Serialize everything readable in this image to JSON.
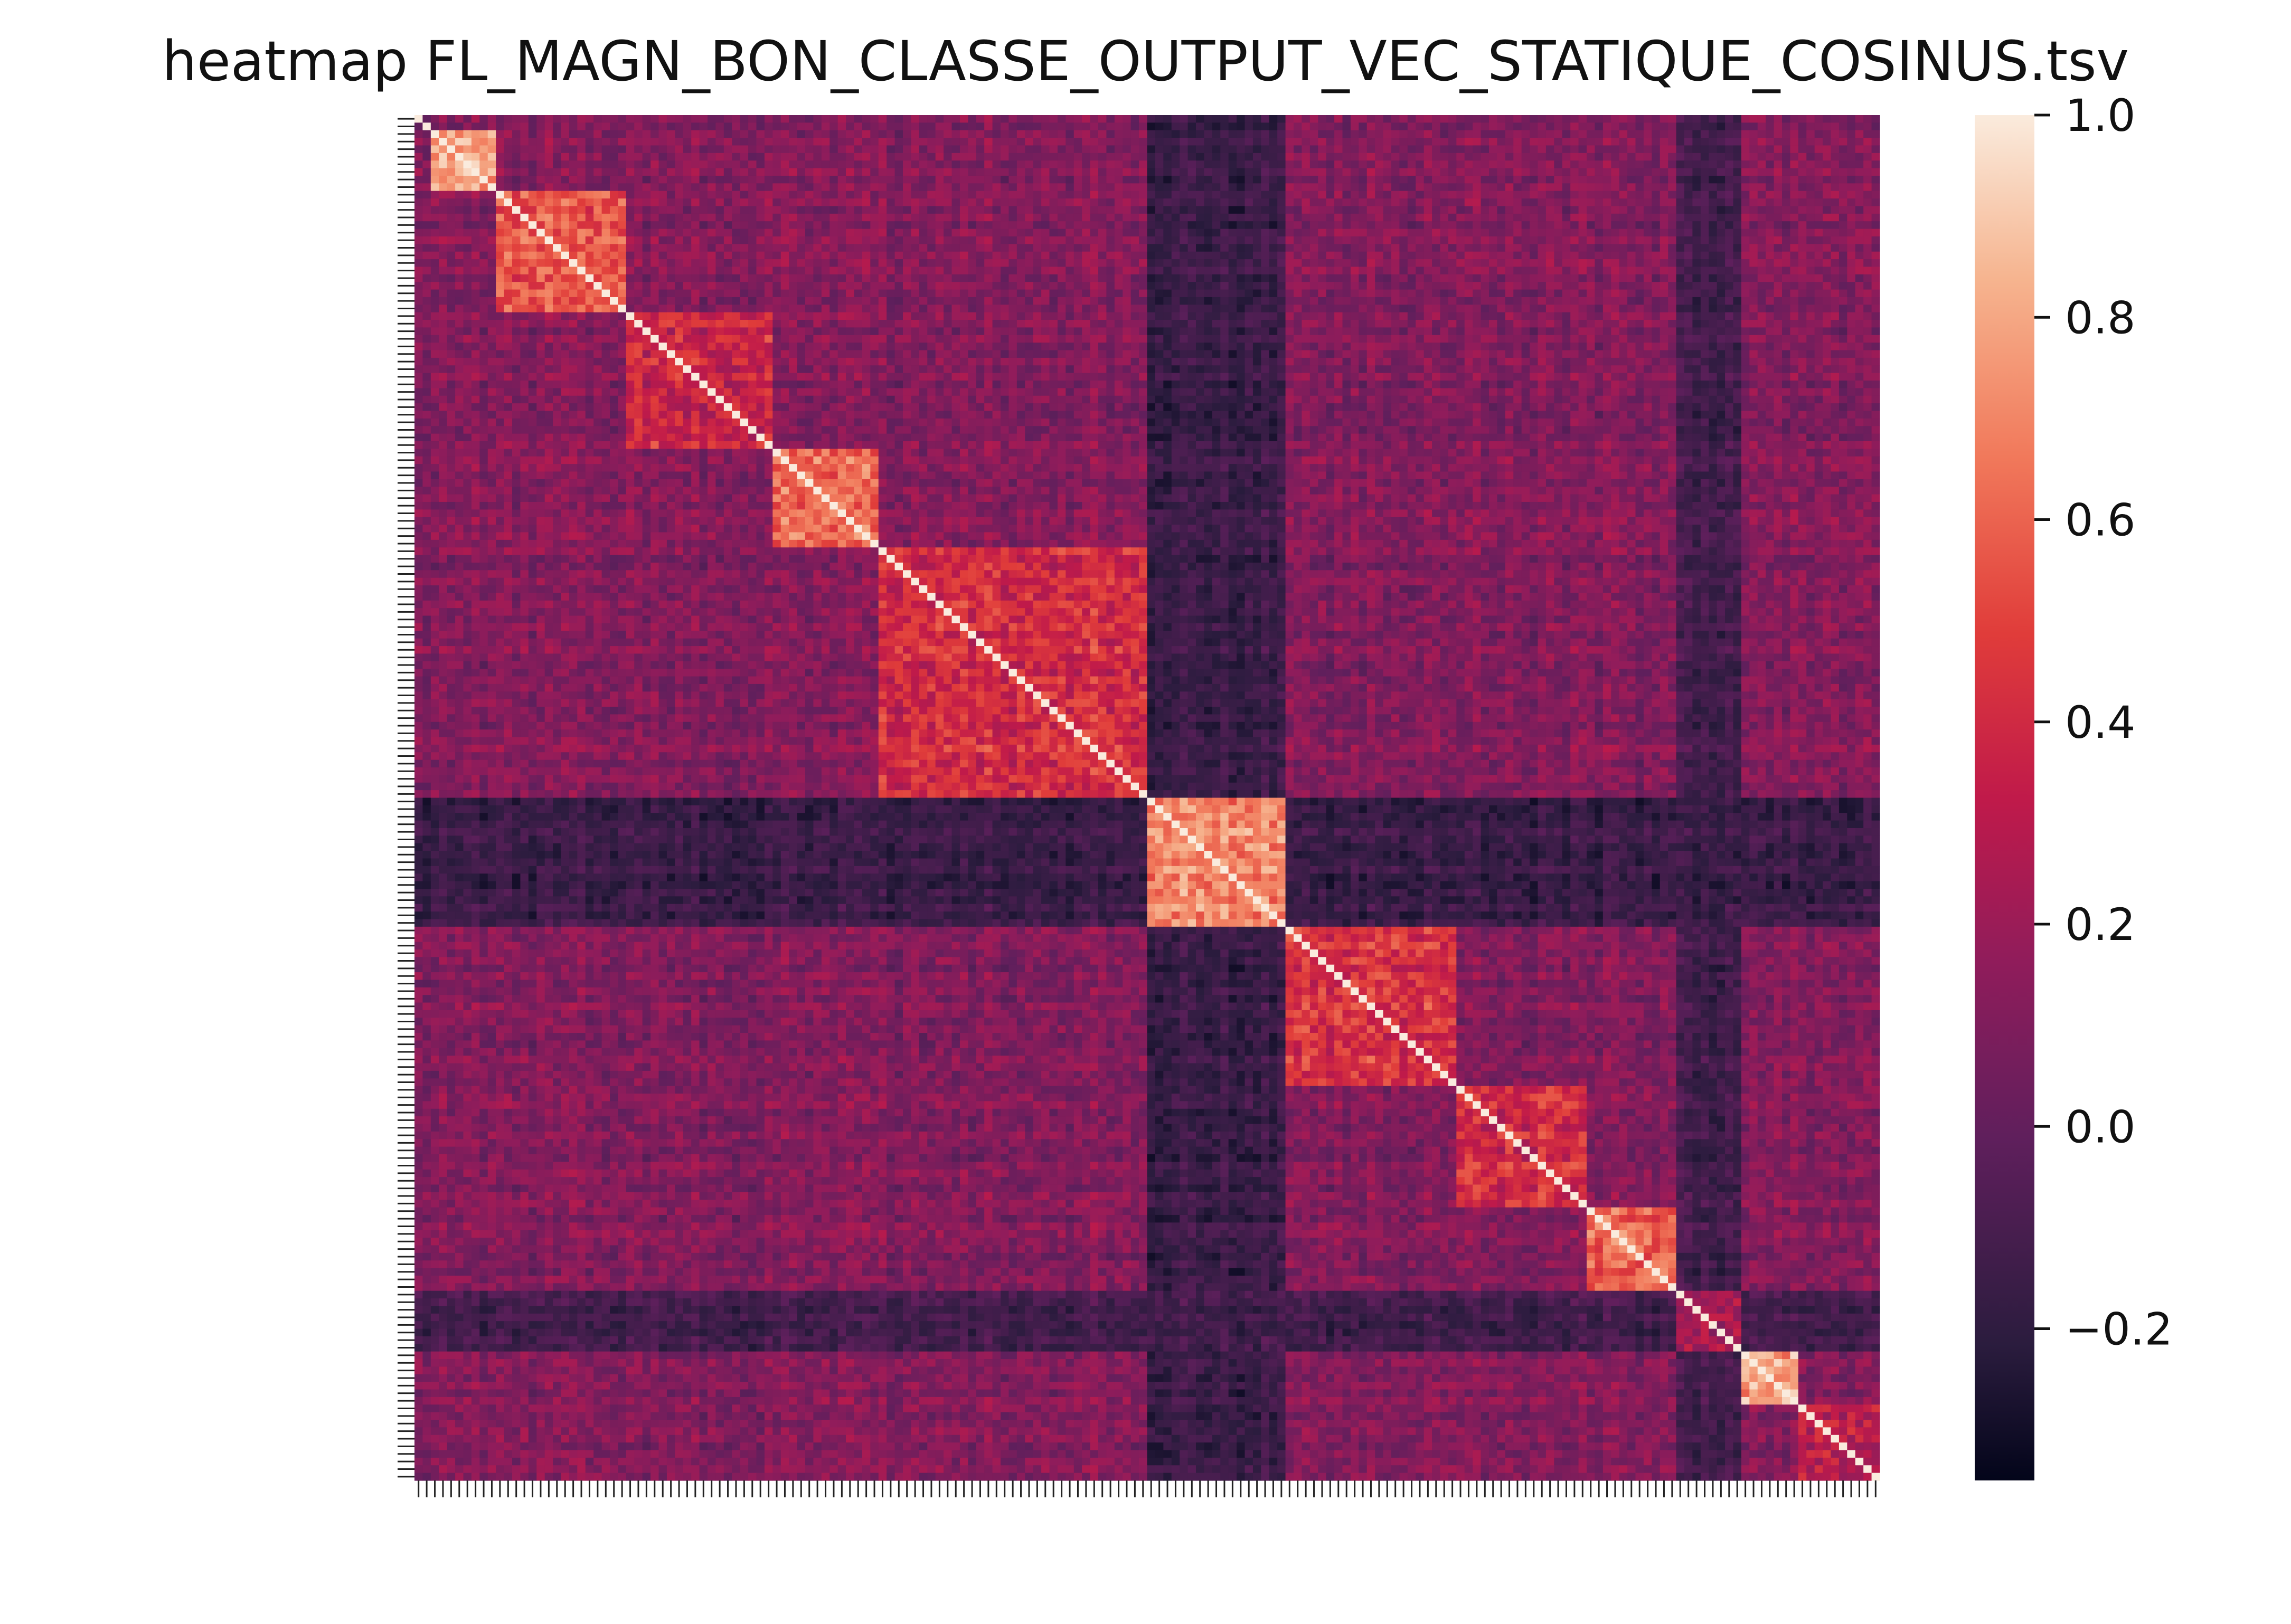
{
  "chart_data": {
    "type": "heatmap",
    "title": "heatmap FL_MAGN_BON_CLASSE_OUTPUT_VEC_STATIQUE_COSINUS.tsv",
    "xlabel": "",
    "ylabel": "",
    "size": 180,
    "colormap": "rocket",
    "colorbar": {
      "range": [
        -0.35,
        1.0
      ],
      "ticks": [
        1.0,
        0.8,
        0.6,
        0.4,
        0.2,
        0.0,
        -0.2
      ],
      "tick_labels": [
        "1.0",
        "0.8",
        "0.6",
        "0.4",
        "0.2",
        "0.0",
        "−0.2"
      ]
    },
    "diagonal": 1.0,
    "background_value": 0.12,
    "blocks": [
      {
        "start": 2,
        "end": 10,
        "within": 0.8,
        "border": 0.3
      },
      {
        "start": 10,
        "end": 26,
        "within": 0.55,
        "border": 0.3
      },
      {
        "start": 26,
        "end": 44,
        "within": 0.38,
        "border": 0.15
      },
      {
        "start": 44,
        "end": 57,
        "within": 0.62,
        "border": 0.3
      },
      {
        "start": 57,
        "end": 90,
        "within": 0.42,
        "border": 0.25
      },
      {
        "start": 90,
        "end": 107,
        "within": 0.72,
        "border": -0.1
      },
      {
        "start": 107,
        "end": 128,
        "within": 0.45,
        "border": 0.2
      },
      {
        "start": 128,
        "end": 144,
        "within": 0.42,
        "border": 0.15
      },
      {
        "start": 144,
        "end": 155,
        "within": 0.62,
        "border": 0.15
      },
      {
        "start": 155,
        "end": 163,
        "within": 0.28,
        "border": -0.05
      },
      {
        "start": 163,
        "end": 170,
        "within": 0.78,
        "border": 0.2
      },
      {
        "start": 170,
        "end": 180,
        "within": 0.32,
        "border": 0.15
      }
    ],
    "dark_bands": [
      {
        "start": 90,
        "end": 107,
        "value": -0.15
      },
      {
        "start": 155,
        "end": 163,
        "value": -0.12
      }
    ]
  }
}
